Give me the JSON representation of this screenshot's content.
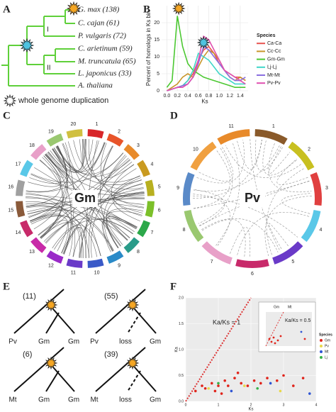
{
  "panel_labels": [
    "A",
    "B",
    "C",
    "D",
    "E",
    "F"
  ],
  "tree": {
    "taxa": [
      "G. max (138)",
      "C. cajan (61)",
      "P. vulgaris (72)",
      "C. arietinum (59)",
      "M. truncatula (65)",
      "L. japonicus (33)",
      "A. thaliana"
    ],
    "clades": [
      "I",
      "II"
    ],
    "legend": "whole genome duplication"
  },
  "chart_data": [
    {
      "type": "line",
      "xlabel": "Ks",
      "ylabel": "Percent of homologs in Ks bin",
      "legend_title": "Species",
      "x": [
        0,
        0.1,
        0.2,
        0.3,
        0.4,
        0.5,
        0.6,
        0.7,
        0.8,
        0.9,
        1.0,
        1.1,
        1.2,
        1.3,
        1.4,
        1.5
      ],
      "series": [
        {
          "name": "Ca-Ca",
          "color": "#e8524f",
          "values": [
            0,
            0.5,
            1,
            1.5,
            3,
            5,
            9,
            12,
            13,
            11,
            8,
            6,
            5,
            4,
            4,
            3
          ]
        },
        {
          "name": "Cc-Cc",
          "color": "#c8962a",
          "values": [
            0,
            1,
            2,
            4,
            5,
            4,
            7,
            10,
            12,
            11,
            9,
            6,
            4,
            3,
            4,
            3
          ]
        },
        {
          "name": "Gm-Gm",
          "color": "#4cc832",
          "values": [
            1,
            3,
            22,
            13,
            8,
            6,
            5,
            4,
            3.5,
            3,
            2.5,
            2,
            1.5,
            1,
            1,
            1
          ]
        },
        {
          "name": "Lj-Lj",
          "color": "#3fd6c8",
          "values": [
            0,
            0.5,
            1,
            1.5,
            3,
            6,
            11,
            10,
            9,
            7,
            5,
            4,
            3,
            2,
            2,
            2
          ]
        },
        {
          "name": "Mt-Mt",
          "color": "#8a6fe0",
          "values": [
            0,
            0.5,
            1,
            1.5,
            2,
            4,
            8,
            13,
            12,
            10,
            8,
            6,
            4,
            3,
            3,
            4
          ]
        },
        {
          "name": "Pv-Pv",
          "color": "#e04fb0",
          "values": [
            0,
            0.5,
            1,
            1,
            2,
            4,
            9,
            16,
            15,
            12,
            9,
            6,
            5,
            4,
            3,
            2
          ]
        }
      ],
      "xlim": [
        -0.1,
        1.55
      ],
      "xticks": [
        {
          "value": 0,
          "label": "0.0"
        },
        0.2,
        0.4,
        0.6,
        0.8,
        {
          "value": 1,
          "label": "1.0"
        },
        1.2,
        1.4
      ],
      "ylim": [
        0,
        25
      ],
      "yticks": [
        0,
        5,
        10,
        15,
        20
      ],
      "grid": true
    },
    {
      "type": "scatter",
      "xlabel": "Ks",
      "ylabel": "Ka",
      "annotation": "Ka/Ks = 1",
      "legend_title": "Species",
      "series": [
        {
          "name": "Gm",
          "color": "#e0241b",
          "x": [
            0.3,
            0.5,
            0.6,
            0.8,
            1.0,
            1.2,
            1.3,
            1.5,
            1.7,
            1.9,
            2.1,
            2.3,
            2.5,
            2.8,
            3.0,
            3.3,
            3.6,
            0.9,
            1.1,
            1.6
          ],
          "values": [
            0.2,
            0.3,
            0.25,
            0.35,
            0.3,
            0.4,
            0.3,
            0.45,
            0.35,
            0.3,
            0.4,
            0.35,
            0.45,
            0.4,
            0.5,
            0.3,
            0.45,
            0.2,
            0.15,
            0.55
          ]
        },
        {
          "name": "Pv",
          "color": "#e8d84a",
          "x": [
            0.7,
            1.8,
            2.9
          ],
          "values": [
            0.25,
            0.3,
            0.2
          ]
        },
        {
          "name": "Mt",
          "color": "#2f55d4",
          "x": [
            1.4,
            2.6,
            3.8
          ],
          "values": [
            0.2,
            0.35,
            0.15
          ]
        },
        {
          "name": "Lj",
          "color": "#38b24a",
          "x": [
            1.0,
            2.2
          ],
          "values": [
            0.35,
            0.25
          ]
        }
      ],
      "xlim": [
        0,
        4
      ],
      "xticks": [
        0,
        1,
        2,
        3,
        4
      ],
      "ylim": [
        0,
        2
      ],
      "yticks": [
        {
          "value": 0,
          "label": "0.0"
        },
        0.5,
        {
          "value": 1,
          "label": "1.0"
        },
        1.5,
        {
          "value": 2,
          "label": "2.0"
        }
      ],
      "grid": true,
      "inset": {
        "legend": [
          "Gm",
          "Mt"
        ],
        "annotation": "Ka/Ks = 0.5"
      }
    }
  ],
  "circos": [
    {
      "label": "Gm",
      "chromosomes": [
        "1",
        "2",
        "3",
        "4",
        "5",
        "6",
        "7",
        "8",
        "9",
        "10",
        "11",
        "12",
        "13",
        "14",
        "15",
        "16",
        "17",
        "18",
        "19",
        "20"
      ]
    },
    {
      "label": "Pv",
      "chromosomes": [
        "1",
        "2",
        "3",
        "4",
        "5",
        "6",
        "7",
        "8",
        "9",
        "10",
        "11"
      ]
    }
  ],
  "duplication_trees": [
    {
      "count": "(11)",
      "leaves": [
        "Pv",
        "Gm",
        "Gm"
      ]
    },
    {
      "count": "(55)",
      "leaves": [
        "Pv",
        "loss",
        "Gm"
      ]
    },
    {
      "count": "(6)",
      "leaves": [
        "Mt",
        "Gm",
        "Gm"
      ]
    },
    {
      "count": "(39)",
      "leaves": [
        "Mt",
        "loss",
        "Gm"
      ]
    }
  ]
}
